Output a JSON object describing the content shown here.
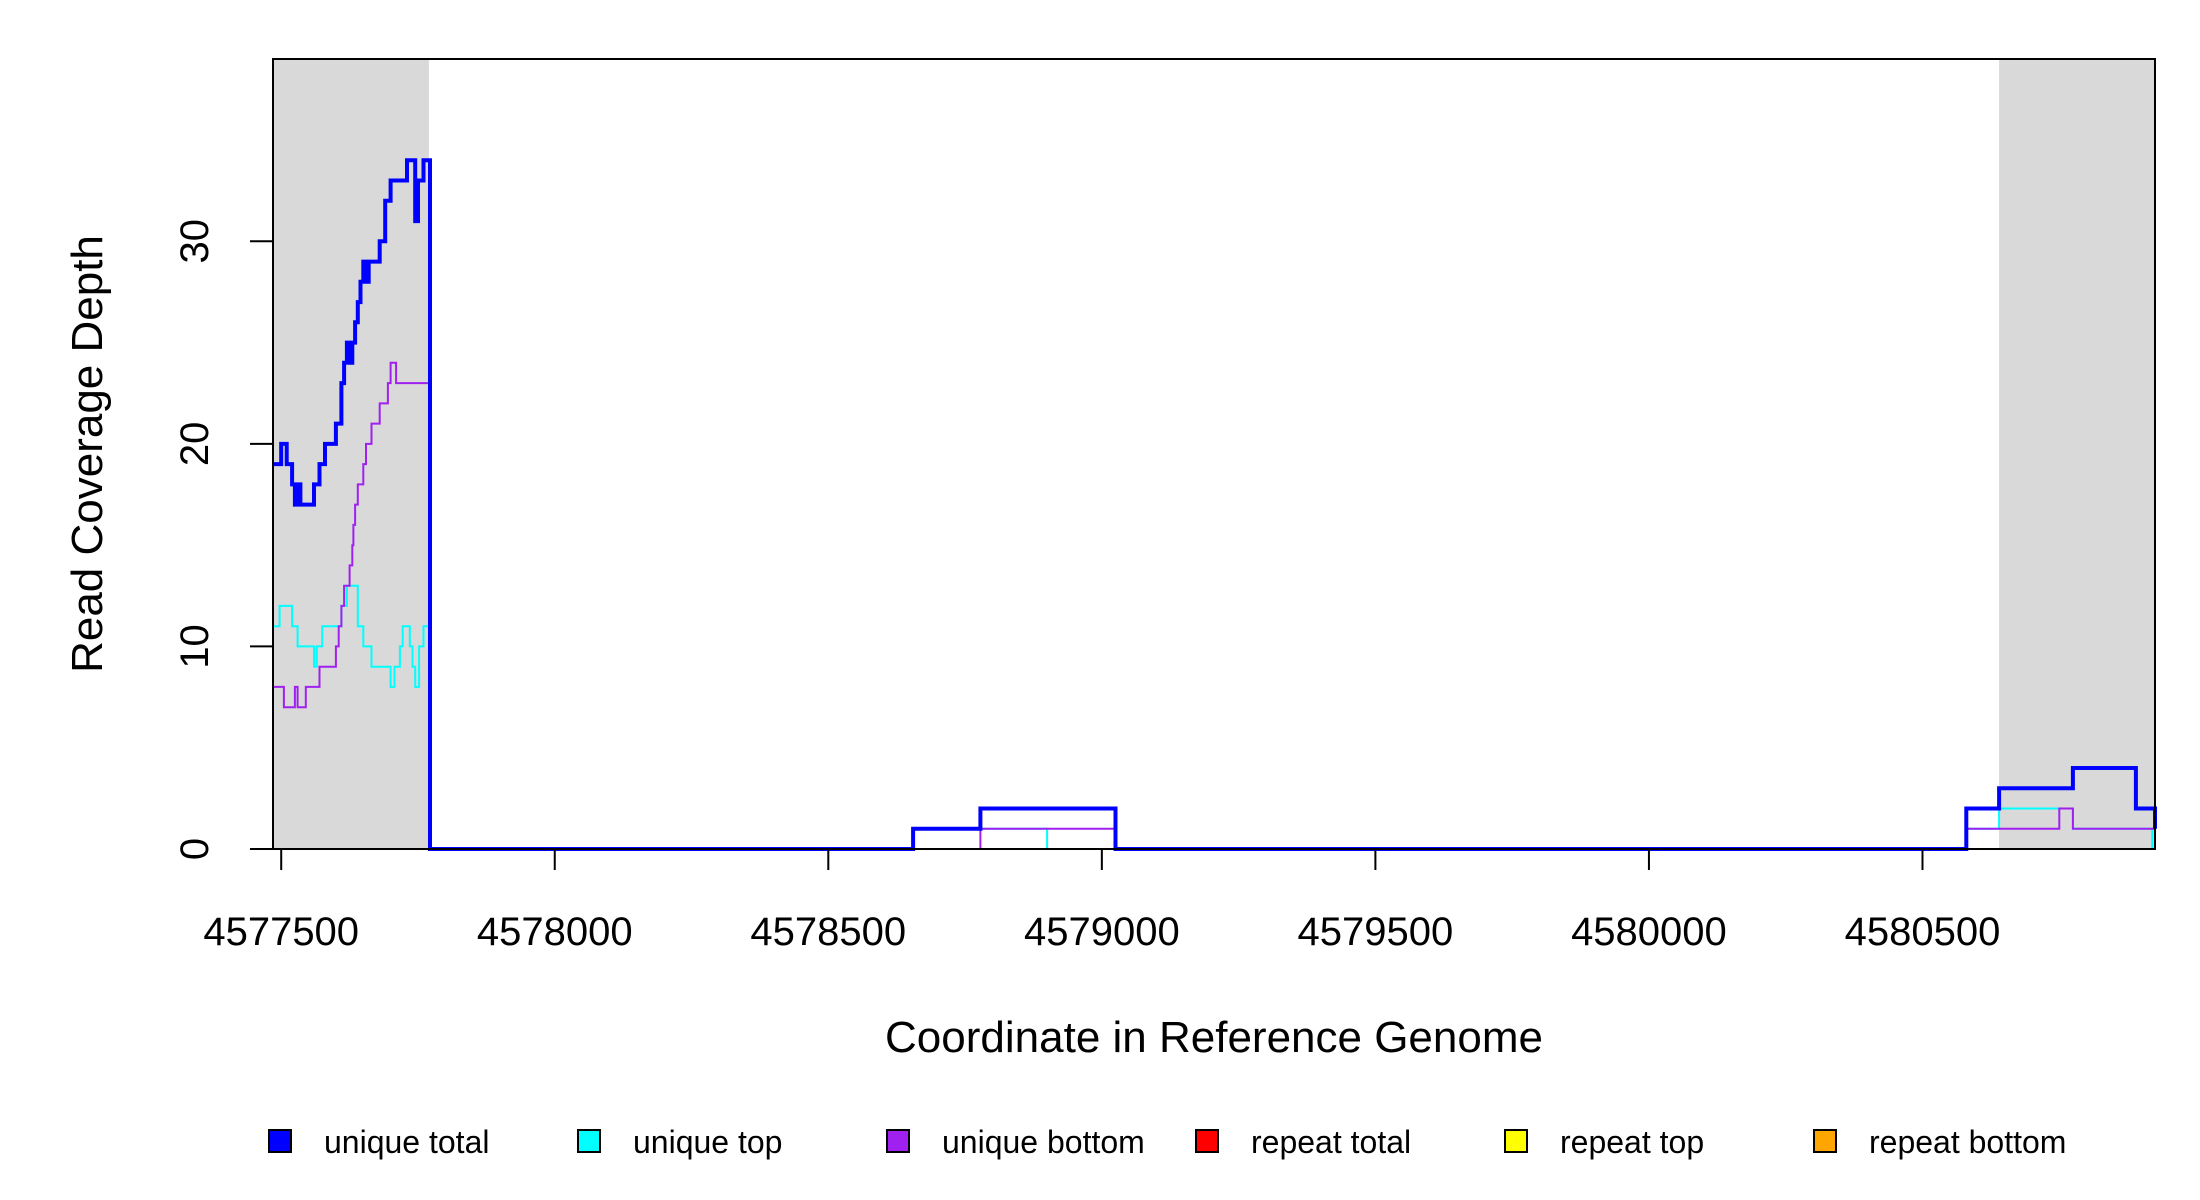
{
  "chart_data": {
    "type": "line",
    "xlabel": "Coordinate in Reference Genome",
    "ylabel": "Read Coverage Depth",
    "xlim": [
      4577485,
      4580925
    ],
    "ylim": [
      0,
      39
    ],
    "x_ticks": [
      4577500,
      4578000,
      4578500,
      4579000,
      4579500,
      4580000,
      4580500
    ],
    "x_tick_labels": [
      "4577500",
      "4578000",
      "4578500",
      "4579000",
      "4579500",
      "4580000",
      "4580500"
    ],
    "y_ticks": [
      0,
      10,
      20,
      30
    ],
    "y_tick_labels": [
      "0",
      "10",
      "20",
      "30"
    ],
    "grid": false,
    "shaded_regions": [
      {
        "x": [
          4577485,
          4577770
        ],
        "color": "#d9d9d9"
      },
      {
        "x": [
          4580640,
          4580925
        ],
        "color": "#d9d9d9"
      }
    ],
    "legend": {
      "placement": "bottom",
      "entries": [
        {
          "label": "unique total",
          "color": "#0000ff"
        },
        {
          "label": "unique top",
          "color": "#00ffff"
        },
        {
          "label": "unique bottom",
          "color": "#a020f0"
        },
        {
          "label": "repeat total",
          "color": "#ff0000"
        },
        {
          "label": "repeat top",
          "color": "#ffff00"
        },
        {
          "label": "repeat bottom",
          "color": "#ffa500"
        }
      ]
    },
    "series": [
      {
        "name": "repeat bottom",
        "color": "#ffa500",
        "width": 2,
        "x": [
          4577485,
          4580925
        ],
        "y": [
          0,
          0
        ]
      },
      {
        "name": "repeat top",
        "color": "#ffff00",
        "width": 2,
        "x": [
          4577485,
          4580925
        ],
        "y": [
          0,
          0
        ]
      },
      {
        "name": "repeat total",
        "color": "#ff0000",
        "width": 2,
        "x": [
          4577485,
          4580925
        ],
        "y": [
          0,
          0
        ]
      },
      {
        "name": "unique top",
        "color": "#00ffff",
        "width": 2,
        "x": [
          4577485,
          4577490,
          4577497,
          4577500,
          4577505,
          4577510,
          4577520,
          4577530,
          4577533,
          4577538,
          4577550,
          4577560,
          4577565,
          4577570,
          4577575,
          4577580,
          4577595,
          4577610,
          4577620,
          4577640,
          4577650,
          4577665,
          4577700,
          4577707,
          4577712,
          4577717,
          4577722,
          4577727,
          4577735,
          4577740,
          4577745,
          4577752,
          4577760,
          4577770,
          4577772,
          4578655,
          4578778,
          4578900,
          4579025,
          4580580,
          4580640,
          4580750,
          4580775,
          4580825,
          4580890,
          4580920,
          4580925
        ],
        "y": [
          11,
          11,
          12,
          12,
          12,
          12,
          11,
          10,
          10,
          10,
          10,
          9,
          10,
          10,
          11,
          11,
          11,
          12,
          13,
          11,
          10,
          9,
          8,
          9,
          9,
          10,
          11,
          11,
          10,
          9,
          8,
          10,
          11,
          11,
          0,
          1,
          1,
          0,
          0,
          1,
          2,
          2,
          1,
          1,
          1,
          0,
          0
        ]
      },
      {
        "name": "unique bottom",
        "color": "#a020f0",
        "width": 2,
        "x": [
          4577485,
          4577500,
          4577505,
          4577515,
          4577525,
          4577530,
          4577535,
          4577545,
          4577550,
          4577560,
          4577570,
          4577600,
          4577605,
          4577610,
          4577615,
          4577620,
          4577625,
          4577630,
          4577632,
          4577635,
          4577640,
          4577645,
          4577650,
          4577655,
          4577660,
          4577665,
          4577670,
          4577675,
          4577680,
          4577695,
          4577700,
          4577705,
          4577710,
          4577715,
          4577770,
          4577772,
          4578778,
          4579025,
          4580580,
          4580750,
          4580775,
          4580925
        ],
        "y": [
          8,
          8,
          7,
          7,
          8,
          7,
          7,
          8,
          8,
          8,
          9,
          10,
          11,
          12,
          13,
          13,
          14,
          15,
          16,
          17,
          18,
          18,
          19,
          20,
          20,
          21,
          21,
          21,
          22,
          23,
          24,
          24,
          23,
          23,
          23,
          0,
          1,
          0,
          1,
          2,
          1,
          0
        ]
      },
      {
        "name": "unique total",
        "color": "#0000ff",
        "width": 4,
        "x": [
          4577485,
          4577497,
          4577500,
          4577510,
          4577520,
          4577525,
          4577530,
          4577535,
          4577540,
          4577550,
          4577560,
          4577570,
          4577580,
          4577600,
          4577610,
          4577615,
          4577620,
          4577625,
          4577630,
          4577635,
          4577640,
          4577645,
          4577650,
          4577655,
          4577660,
          4577665,
          4577670,
          4577680,
          4577690,
          4577700,
          4577710,
          4577730,
          4577745,
          4577750,
          4577760,
          4577770,
          4577772,
          4578655,
          4578778,
          4578900,
          4579025,
          4580580,
          4580640,
          4580750,
          4580775,
          4580890,
          4580925
        ],
        "y": [
          19,
          19,
          20,
          19,
          18,
          17,
          18,
          17,
          17,
          17,
          18,
          19,
          20,
          21,
          23,
          24,
          25,
          24,
          25,
          26,
          27,
          28,
          29,
          28,
          29,
          29,
          29,
          30,
          32,
          33,
          33,
          34,
          31,
          33,
          34,
          34,
          0,
          1,
          2,
          2,
          0,
          2,
          3,
          3,
          4,
          2,
          1
        ]
      }
    ]
  }
}
